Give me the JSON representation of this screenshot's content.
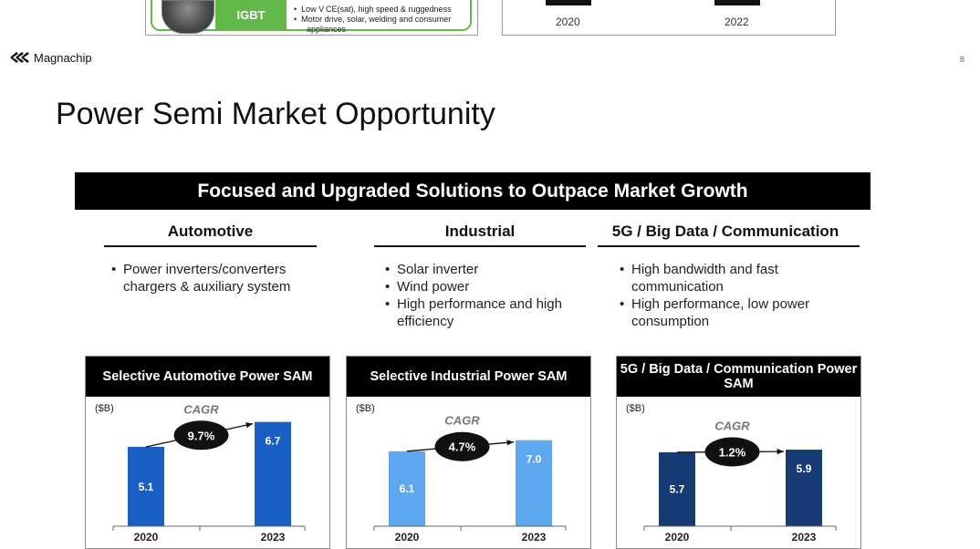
{
  "prev_slide": {
    "igbt_label": "IGBT",
    "bullets": [
      "Low V CE(sat), high speed & ruggedness",
      "Motor drive, solar, welding and consumer",
      "appliances"
    ],
    "bullet_marks": [
      "•",
      "•",
      ""
    ],
    "years": [
      "2020",
      "2022"
    ]
  },
  "brand": {
    "name": "Magnachip"
  },
  "page_number": "8",
  "title": "Power Semi Market Opportunity",
  "banner": "Focused and Upgraded Solutions to Outpace Market Growth",
  "segments": [
    {
      "heading": "Automotive",
      "bullets": [
        "Power inverters/converters chargers & auxiliary system"
      ]
    },
    {
      "heading": "Industrial",
      "bullets": [
        "Solar inverter",
        "Wind power",
        "High performance and high efficiency"
      ]
    },
    {
      "heading": "5G / Big Data / Communication",
      "bullets": [
        "High bandwidth and fast communication",
        "High performance, low power consumption"
      ]
    }
  ],
  "colors": {
    "automotive": "#1a5fc4",
    "industrial": "#5ea8f0",
    "communication": "#163a73",
    "banner": "#000000",
    "prev_green": "#63b84a"
  },
  "chart_data": [
    {
      "type": "bar",
      "title": "Selective Automotive Power SAM",
      "unit": "($B)",
      "categories": [
        "2020",
        "2023"
      ],
      "values": [
        5.1,
        6.7
      ],
      "value_labels": [
        "5.1",
        "6.7"
      ],
      "cagr_label": "CAGR",
      "cagr": "9.7%",
      "ylim": [
        0,
        7.5
      ]
    },
    {
      "type": "bar",
      "title": "Selective Industrial Power SAM",
      "unit": "($B)",
      "categories": [
        "2020",
        "2023"
      ],
      "values": [
        6.1,
        7.0
      ],
      "value_labels": [
        "6.1",
        "7.0"
      ],
      "cagr_label": "CAGR",
      "cagr": "4.7%",
      "ylim": [
        0,
        9.5
      ]
    },
    {
      "type": "bar",
      "title": "5G / Big Data / Communication Power SAM",
      "unit": "($B)",
      "categories": [
        "2020",
        "2023"
      ],
      "values": [
        5.7,
        5.9
      ],
      "value_labels": [
        "5.7",
        "5.9"
      ],
      "cagr_label": "CAGR",
      "cagr": "1.2%",
      "ylim": [
        0,
        9
      ]
    }
  ]
}
